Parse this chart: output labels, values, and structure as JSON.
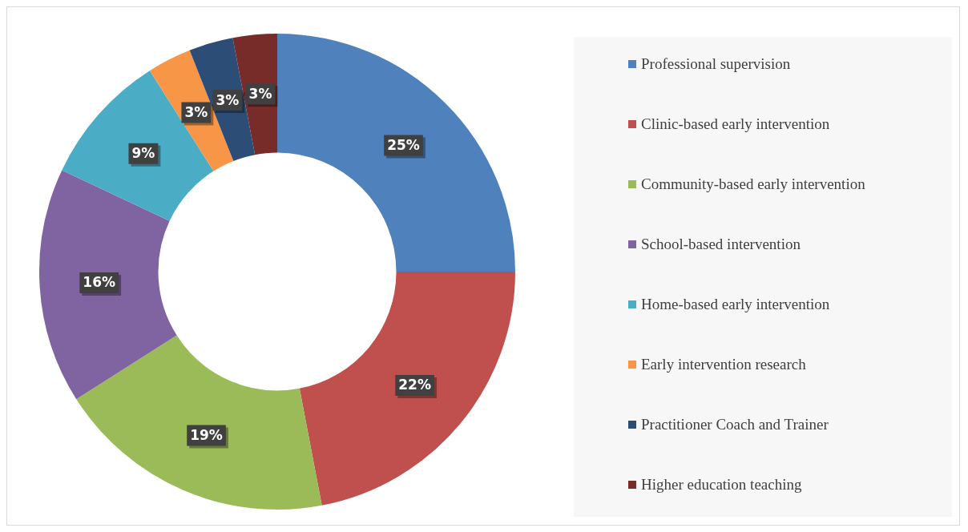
{
  "chart_data": {
    "type": "donut",
    "categories": [
      "Professional supervision",
      "Clinic-based early intervention",
      "Community-based early intervention",
      "School-based intervention",
      "Home-based early intervention",
      "Early intervention research",
      "Practitioner Coach and Trainer",
      "Higher education teaching"
    ],
    "values": [
      25,
      22,
      19,
      16,
      9,
      3,
      3,
      3
    ],
    "value_labels": [
      "25%",
      "22%",
      "19%",
      "16%",
      "9%",
      "3%",
      "3%",
      "3%"
    ],
    "colors": [
      "#4f81bd",
      "#c0504d",
      "#9bbb59",
      "#8064a2",
      "#4bacc6",
      "#f79646",
      "#2c4d75",
      "#772c2a"
    ],
    "legend": "right"
  }
}
